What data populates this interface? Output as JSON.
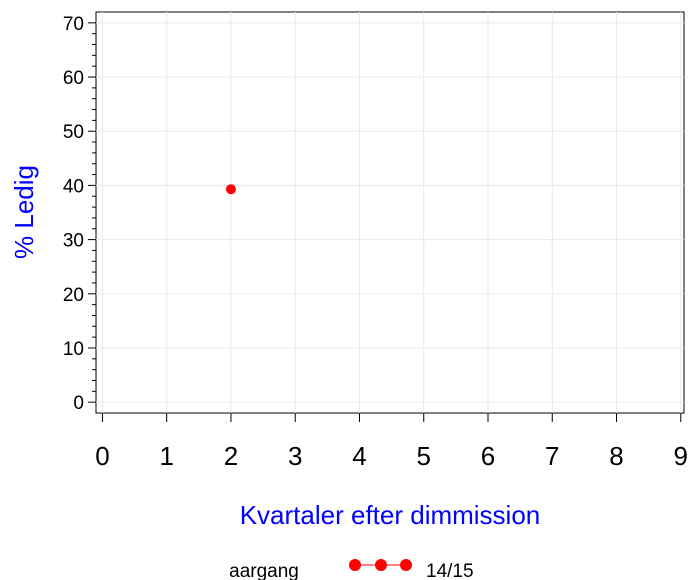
{
  "chart_data": {
    "type": "line",
    "xlabel": "Kvartaler efter dimmission",
    "ylabel": "% Ledig",
    "xlim": [
      -0.1,
      9.05
    ],
    "ylim": [
      -2,
      72
    ],
    "x_ticks": [
      0,
      1,
      2,
      3,
      4,
      5,
      6,
      7,
      8,
      9
    ],
    "x_tick_labels": [
      "0",
      "1",
      "2",
      "3",
      "4",
      "5",
      "6",
      "7",
      "8",
      "9"
    ],
    "y_ticks": [
      0,
      10,
      20,
      30,
      40,
      50,
      60,
      70
    ],
    "y_tick_labels": [
      "0",
      "10",
      "20",
      "30",
      "40",
      "50",
      "60",
      "70"
    ],
    "grid": true,
    "legend_position": "bottom",
    "legend_title": "aargang",
    "series": [
      {
        "name": "14/15",
        "color": "#ff0000",
        "x": [
          2
        ],
        "y": [
          39.3
        ]
      }
    ],
    "colors": {
      "axis_title": "#0000ff",
      "grid": "#e9e9e9",
      "axis": "#000000"
    }
  }
}
